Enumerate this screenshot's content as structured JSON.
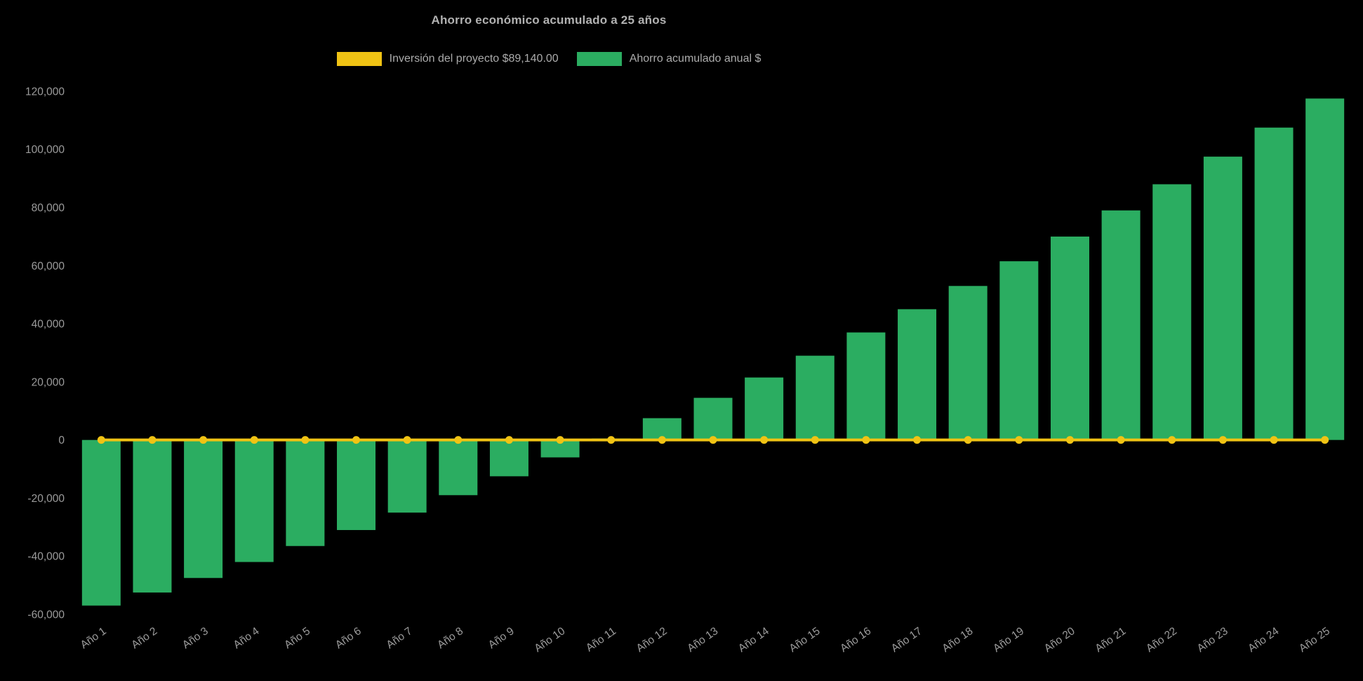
{
  "page": {
    "background": "#000000"
  },
  "header": {
    "title": "Ahorro económico acumulado a 25 años"
  },
  "legend": {
    "items": [
      {
        "key": "investment",
        "label": "Inversión del proyecto $89,140.00",
        "color": "#f0c314"
      },
      {
        "key": "savings",
        "label": "Ahorro acumulado anual $",
        "color": "#2bad61"
      }
    ]
  },
  "chart_data": {
    "type": "bar",
    "title": "Ahorro económico acumulado a 25 años",
    "categories": [
      "Año 1",
      "Año 2",
      "Año 3",
      "Año 4",
      "Año 5",
      "Año 6",
      "Año 7",
      "Año 8",
      "Año 9",
      "Año 10",
      "Año 11",
      "Año 12",
      "Año 13",
      "Año 14",
      "Año 15",
      "Año 16",
      "Año 17",
      "Año 18",
      "Año 19",
      "Año 20",
      "Año 21",
      "Año 22",
      "Año 23",
      "Año 24",
      "Año 25"
    ],
    "series": [
      {
        "name": "Inversión del proyecto $89,140.00",
        "type": "line",
        "color": "#f0c314",
        "marker": "circle",
        "values": [
          0,
          0,
          0,
          0,
          0,
          0,
          0,
          0,
          0,
          0,
          0,
          0,
          0,
          0,
          0,
          0,
          0,
          0,
          0,
          0,
          0,
          0,
          0,
          0,
          0
        ]
      },
      {
        "name": "Ahorro acumulado anual $",
        "type": "bar",
        "color": "#2bad61",
        "values": [
          -57000,
          -52500,
          -47500,
          -42000,
          -36500,
          -31000,
          -25000,
          -19000,
          -12500,
          -6000,
          500,
          7500,
          14500,
          21500,
          29000,
          37000,
          45000,
          53000,
          61500,
          70000,
          79000,
          88000,
          97500,
          107500,
          117500
        ]
      }
    ],
    "xlabel": "",
    "ylabel": "",
    "ylim": [
      -60000,
      120000
    ],
    "ytick_step": 20000,
    "ytick_labels": [
      "-60,000",
      "-40,000",
      "-20,000",
      "0",
      "20,000",
      "40,000",
      "60,000",
      "80,000",
      "100,000",
      "120,000"
    ],
    "grid": false,
    "legend_position": "top",
    "x_label_rotation": -35
  }
}
